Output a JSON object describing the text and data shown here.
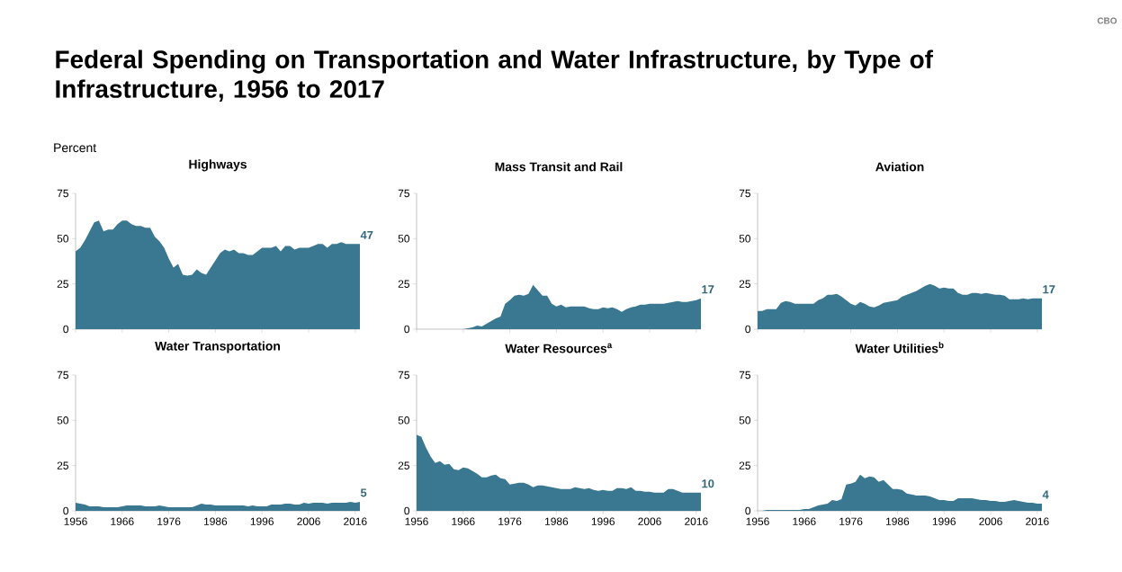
{
  "chart_data": [
    {
      "type": "area",
      "title": "Highways",
      "ylabel": "Percent",
      "color": "#3a7891",
      "tick_labels": "y",
      "xlim": [
        1956,
        2017
      ],
      "xticks": [
        1956,
        1966,
        1976,
        1986,
        1996,
        2006,
        2016
      ],
      "ylim": [
        0,
        75
      ],
      "yticks": [
        0,
        25,
        50,
        75
      ],
      "x": [
        1956,
        1957,
        1958,
        1959,
        1960,
        1961,
        1962,
        1963,
        1964,
        1965,
        1966,
        1967,
        1968,
        1969,
        1970,
        1971,
        1972,
        1973,
        1974,
        1975,
        1976,
        1977,
        1978,
        1979,
        1980,
        1981,
        1982,
        1983,
        1984,
        1985,
        1986,
        1987,
        1988,
        1989,
        1990,
        1991,
        1992,
        1993,
        1994,
        1995,
        1996,
        1997,
        1998,
        1999,
        2000,
        2001,
        2002,
        2003,
        2004,
        2005,
        2006,
        2007,
        2008,
        2009,
        2010,
        2011,
        2012,
        2013,
        2014,
        2015,
        2016,
        2017
      ],
      "values": [
        43,
        45,
        49,
        54,
        59,
        60,
        54,
        55,
        55,
        58,
        60,
        60,
        58,
        57,
        57,
        56,
        56,
        51,
        48.5,
        45,
        39,
        34,
        36,
        30,
        29.5,
        30,
        33,
        31,
        30,
        34,
        38,
        42,
        44,
        43,
        44,
        42,
        42,
        41,
        41,
        43,
        45,
        45,
        45,
        46,
        43,
        46,
        46,
        44,
        45,
        45,
        45,
        46,
        47,
        47,
        45,
        47,
        47,
        48,
        47,
        47,
        47,
        47
      ],
      "value_labels": [
        null,
        null,
        null,
        null,
        null,
        null,
        null,
        null,
        null,
        null,
        null,
        null,
        null,
        null,
        null,
        null,
        null,
        null,
        null,
        null,
        null,
        null,
        null,
        null,
        null,
        null,
        null,
        null,
        null,
        null,
        null,
        null,
        null,
        null,
        null,
        null,
        null,
        null,
        null,
        null,
        null,
        null,
        null,
        null,
        null,
        null,
        null,
        null,
        null,
        null,
        null,
        null,
        null,
        null,
        null,
        null,
        null,
        null,
        null,
        null,
        null,
        "47"
      ],
      "annotations": [
        "Federal Spending on Transportation and Water Infrastructure, by Type of Infrastructure, 1956 to 2017",
        "CBO"
      ]
    },
    {
      "type": "area",
      "title": "Mass Transit and Rail",
      "color": "#3a7891",
      "tick_labels": "y",
      "xlim": [
        1956,
        2017
      ],
      "xticks": [
        1956,
        1966,
        1976,
        1986,
        1996,
        2006,
        2016
      ],
      "ylim": [
        0,
        75
      ],
      "yticks": [
        0,
        25,
        50,
        75
      ],
      "x": [
        1956,
        1957,
        1958,
        1959,
        1960,
        1961,
        1962,
        1963,
        1964,
        1965,
        1966,
        1967,
        1968,
        1969,
        1970,
        1971,
        1972,
        1973,
        1974,
        1975,
        1976,
        1977,
        1978,
        1979,
        1980,
        1981,
        1982,
        1983,
        1984,
        1985,
        1986,
        1987,
        1988,
        1989,
        1990,
        1991,
        1992,
        1993,
        1994,
        1995,
        1996,
        1997,
        1998,
        1999,
        2000,
        2001,
        2002,
        2003,
        2004,
        2005,
        2006,
        2007,
        2008,
        2009,
        2010,
        2011,
        2012,
        2013,
        2014,
        2015,
        2016,
        2017
      ],
      "values": [
        0,
        0,
        0,
        0,
        0,
        0,
        0,
        0,
        0,
        0,
        0,
        0.5,
        1,
        2,
        1.5,
        3,
        4.5,
        6,
        7,
        14,
        16,
        18.5,
        19,
        18.5,
        19.5,
        24.5,
        21.5,
        18.5,
        18.5,
        14,
        12.5,
        13.5,
        12,
        12.5,
        12.5,
        12.5,
        12.5,
        11.5,
        11,
        11,
        12,
        11.5,
        12,
        11,
        9.5,
        11,
        12,
        12.5,
        13.5,
        13.5,
        14,
        14,
        14,
        14,
        14.5,
        15,
        15.5,
        15,
        15,
        15.5,
        16,
        17
      ],
      "value_labels": [
        null,
        null,
        null,
        null,
        null,
        null,
        null,
        null,
        null,
        null,
        null,
        null,
        null,
        null,
        null,
        null,
        null,
        null,
        null,
        null,
        null,
        null,
        null,
        null,
        null,
        null,
        null,
        null,
        null,
        null,
        null,
        null,
        null,
        null,
        null,
        null,
        null,
        null,
        null,
        null,
        null,
        null,
        null,
        null,
        null,
        null,
        null,
        null,
        null,
        null,
        null,
        null,
        null,
        null,
        null,
        null,
        null,
        null,
        null,
        null,
        null,
        "17"
      ]
    },
    {
      "type": "area",
      "title": "Aviation",
      "color": "#3a7891",
      "tick_labels": "y",
      "xlim": [
        1956,
        2017
      ],
      "xticks": [
        1956,
        1966,
        1976,
        1986,
        1996,
        2006,
        2016
      ],
      "ylim": [
        0,
        75
      ],
      "yticks": [
        0,
        25,
        50,
        75
      ],
      "x": [
        1956,
        1957,
        1958,
        1959,
        1960,
        1961,
        1962,
        1963,
        1964,
        1965,
        1966,
        1967,
        1968,
        1969,
        1970,
        1971,
        1972,
        1973,
        1974,
        1975,
        1976,
        1977,
        1978,
        1979,
        1980,
        1981,
        1982,
        1983,
        1984,
        1985,
        1986,
        1987,
        1988,
        1989,
        1990,
        1991,
        1992,
        1993,
        1994,
        1995,
        1996,
        1997,
        1998,
        1999,
        2000,
        2001,
        2002,
        2003,
        2004,
        2005,
        2006,
        2007,
        2008,
        2009,
        2010,
        2011,
        2012,
        2013,
        2014,
        2015,
        2016,
        2017
      ],
      "values": [
        10,
        10,
        11,
        11,
        11,
        14.5,
        15.5,
        15,
        14,
        14,
        14,
        14,
        14,
        16,
        17,
        19,
        19,
        19.5,
        18,
        16,
        14,
        13,
        15,
        14,
        12.5,
        12,
        13,
        14.5,
        15,
        15.5,
        16,
        18,
        19,
        20,
        21,
        22.5,
        24,
        25,
        24,
        22.5,
        23,
        22.5,
        22.5,
        20,
        19,
        19,
        20,
        20,
        19.5,
        20,
        19.5,
        19,
        19,
        18.5,
        16.5,
        16.5,
        16.5,
        17,
        16.5,
        17,
        17,
        17
      ],
      "value_labels": [
        null,
        null,
        null,
        null,
        null,
        null,
        null,
        null,
        null,
        null,
        null,
        null,
        null,
        null,
        null,
        null,
        null,
        null,
        null,
        null,
        null,
        null,
        null,
        null,
        null,
        null,
        null,
        null,
        null,
        null,
        null,
        null,
        null,
        null,
        null,
        null,
        null,
        null,
        null,
        null,
        null,
        null,
        null,
        null,
        null,
        null,
        null,
        null,
        null,
        null,
        null,
        null,
        null,
        null,
        null,
        null,
        null,
        null,
        null,
        null,
        null,
        "17"
      ]
    },
    {
      "type": "area",
      "title": "Water Transportation",
      "color": "#3a7891",
      "xlim": [
        1956,
        2017
      ],
      "xticks": [
        1956,
        1966,
        1976,
        1986,
        1996,
        2006,
        2016
      ],
      "ylim": [
        0,
        75
      ],
      "yticks": [
        0,
        25,
        50,
        75
      ],
      "x": [
        1956,
        1957,
        1958,
        1959,
        1960,
        1961,
        1962,
        1963,
        1964,
        1965,
        1966,
        1967,
        1968,
        1969,
        1970,
        1971,
        1972,
        1973,
        1974,
        1975,
        1976,
        1977,
        1978,
        1979,
        1980,
        1981,
        1982,
        1983,
        1984,
        1985,
        1986,
        1987,
        1988,
        1989,
        1990,
        1991,
        1992,
        1993,
        1994,
        1995,
        1996,
        1997,
        1998,
        1999,
        2000,
        2001,
        2002,
        2003,
        2004,
        2005,
        2006,
        2007,
        2008,
        2009,
        2010,
        2011,
        2012,
        2013,
        2014,
        2015,
        2016,
        2017
      ],
      "values": [
        4.5,
        4,
        3.5,
        2.5,
        2.5,
        2.5,
        2,
        2,
        2,
        2,
        2.5,
        3,
        3,
        3,
        3,
        2.5,
        2.5,
        2.5,
        3,
        2.5,
        2,
        2,
        2,
        2,
        2,
        2,
        3,
        4,
        3.5,
        3.5,
        3,
        3,
        3,
        3,
        3,
        3,
        3,
        2.5,
        3,
        2.5,
        2.5,
        2.5,
        3.5,
        3.5,
        3.5,
        4,
        4,
        3.5,
        3.5,
        4.5,
        4,
        4.5,
        4.5,
        4.5,
        4,
        4.5,
        4.5,
        4.5,
        4.5,
        5,
        4.5,
        5
      ],
      "value_labels": [
        null,
        null,
        null,
        null,
        null,
        null,
        null,
        null,
        null,
        null,
        null,
        null,
        null,
        null,
        null,
        null,
        null,
        null,
        null,
        null,
        null,
        null,
        null,
        null,
        null,
        null,
        null,
        null,
        null,
        null,
        null,
        null,
        null,
        null,
        null,
        null,
        null,
        null,
        null,
        null,
        null,
        null,
        null,
        null,
        null,
        null,
        null,
        null,
        null,
        null,
        null,
        null,
        null,
        null,
        null,
        null,
        null,
        null,
        null,
        null,
        null,
        "5"
      ]
    },
    {
      "type": "area",
      "title": "Water Resources$^{a}$",
      "color": "#3a7891",
      "xlim": [
        1956,
        2017
      ],
      "xticks": [
        1956,
        1966,
        1976,
        1986,
        1996,
        2006,
        2016
      ],
      "ylim": [
        0,
        75
      ],
      "yticks": [
        0,
        25,
        50,
        75
      ],
      "x": [
        1956,
        1957,
        1958,
        1959,
        1960,
        1961,
        1962,
        1963,
        1964,
        1965,
        1966,
        1967,
        1968,
        1969,
        1970,
        1971,
        1972,
        1973,
        1974,
        1975,
        1976,
        1977,
        1978,
        1979,
        1980,
        1981,
        1982,
        1983,
        1984,
        1985,
        1986,
        1987,
        1988,
        1989,
        1990,
        1991,
        1992,
        1993,
        1994,
        1995,
        1996,
        1997,
        1998,
        1999,
        2000,
        2001,
        2002,
        2003,
        2004,
        2005,
        2006,
        2007,
        2008,
        2009,
        2010,
        2011,
        2012,
        2013,
        2014,
        2015,
        2016,
        2017
      ],
      "values": [
        42,
        41,
        35,
        30,
        26.5,
        27.5,
        25.5,
        26,
        23,
        22.5,
        24,
        23.5,
        22,
        20.5,
        18.5,
        18.5,
        19.5,
        20,
        18,
        17.5,
        14.5,
        15,
        15.5,
        15.5,
        14.5,
        13,
        14,
        14,
        13.5,
        13,
        12.5,
        12,
        12,
        12,
        13,
        12.5,
        12,
        12.5,
        11.5,
        11,
        11.5,
        11,
        11,
        12.5,
        12.5,
        12,
        13,
        11,
        11,
        10.5,
        10.5,
        10,
        10,
        10,
        12,
        12,
        11,
        10,
        10,
        10,
        10,
        10
      ],
      "value_labels": [
        null,
        null,
        null,
        null,
        null,
        null,
        null,
        null,
        null,
        null,
        null,
        null,
        null,
        null,
        null,
        null,
        null,
        null,
        null,
        null,
        null,
        null,
        null,
        null,
        null,
        null,
        null,
        null,
        null,
        null,
        null,
        null,
        null,
        null,
        null,
        null,
        null,
        null,
        null,
        null,
        null,
        null,
        null,
        null,
        null,
        null,
        null,
        null,
        null,
        null,
        null,
        null,
        null,
        null,
        null,
        null,
        null,
        null,
        null,
        null,
        null,
        "10"
      ]
    },
    {
      "type": "area",
      "title": "Water Utilities$^{b}$",
      "color": "#3a7891",
      "xlim": [
        1956,
        2017
      ],
      "xticks": [
        1956,
        1966,
        1976,
        1986,
        1996,
        2006,
        2016
      ],
      "ylim": [
        0,
        75
      ],
      "yticks": [
        0,
        25,
        50,
        75
      ],
      "x": [
        1956,
        1957,
        1958,
        1959,
        1960,
        1961,
        1962,
        1963,
        1964,
        1965,
        1966,
        1967,
        1968,
        1969,
        1970,
        1971,
        1972,
        1973,
        1974,
        1975,
        1976,
        1977,
        1978,
        1979,
        1980,
        1981,
        1982,
        1983,
        1984,
        1985,
        1986,
        1987,
        1988,
        1989,
        1990,
        1991,
        1992,
        1993,
        1994,
        1995,
        1996,
        1997,
        1998,
        1999,
        2000,
        2001,
        2002,
        2003,
        2004,
        2005,
        2006,
        2007,
        2008,
        2009,
        2010,
        2011,
        2012,
        2013,
        2014,
        2015,
        2016,
        2017
      ],
      "values": [
        0,
        0,
        0.5,
        0.5,
        0.5,
        0.5,
        0.5,
        0.5,
        0.5,
        0.5,
        1,
        1,
        2,
        3,
        3.5,
        4,
        6,
        5.5,
        6.5,
        14.5,
        15,
        16,
        20,
        18,
        19,
        18.5,
        16,
        17,
        14.5,
        12,
        12,
        11.5,
        9.5,
        9,
        8.5,
        8.5,
        8.5,
        8,
        7,
        6,
        6,
        5.5,
        5.5,
        7,
        7,
        7,
        7,
        6.5,
        6,
        6,
        5.5,
        5.5,
        5,
        5,
        5.5,
        6,
        5.5,
        5,
        4.5,
        4.5,
        4,
        4
      ],
      "value_labels": [
        null,
        null,
        null,
        null,
        null,
        null,
        null,
        null,
        null,
        null,
        null,
        null,
        null,
        null,
        null,
        null,
        null,
        null,
        null,
        null,
        null,
        null,
        null,
        null,
        null,
        null,
        null,
        null,
        null,
        null,
        null,
        null,
        null,
        null,
        null,
        null,
        null,
        null,
        null,
        null,
        null,
        null,
        null,
        null,
        null,
        null,
        null,
        null,
        null,
        null,
        null,
        null,
        null,
        null,
        null,
        null,
        null,
        null,
        null,
        null,
        null,
        "4"
      ]
    }
  ]
}
